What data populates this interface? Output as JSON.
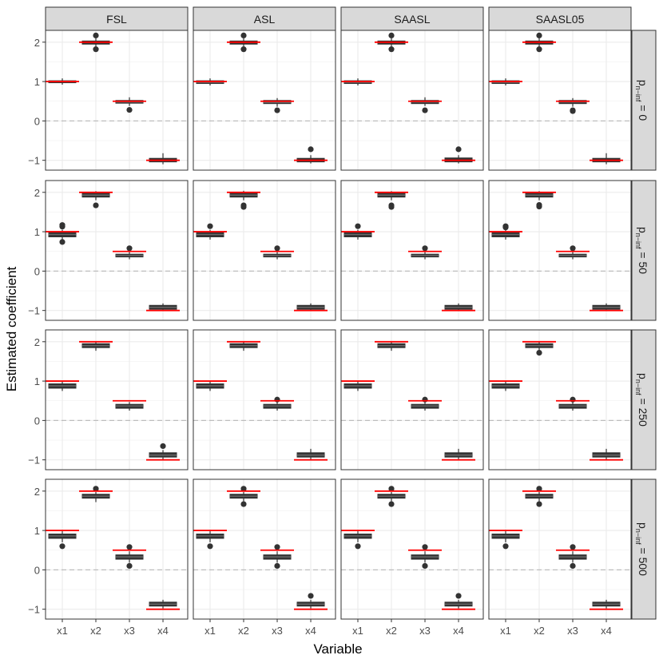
{
  "chart_data": {
    "type": "boxplot-facet-grid",
    "xlabel": "Variable",
    "ylabel": "Estimated coefficient",
    "ylim": [
      -1.25,
      2.3
    ],
    "y_ticks": [
      -1,
      0,
      1,
      2
    ],
    "y_tick_labels": [
      "−1",
      "0",
      "1",
      "2"
    ],
    "categories": [
      "x1",
      "x2",
      "x3",
      "x4"
    ],
    "column_facets": [
      "FSL",
      "ASL",
      "SAASL",
      "SAASL05"
    ],
    "row_facets": [
      {
        "prefix": "p",
        "subscript": "n−inf",
        "suffix": " = 0"
      },
      {
        "prefix": "p",
        "subscript": "n−inf",
        "suffix": " = 50"
      },
      {
        "prefix": "p",
        "subscript": "n−inf",
        "suffix": " = 250"
      },
      {
        "prefix": "p",
        "subscript": "n−inf",
        "suffix": " = 500"
      }
    ],
    "true_values": [
      1,
      2,
      0.5,
      -1
    ],
    "reference_line": 0,
    "colors": {
      "true_value_line": "#ff0000",
      "box_fill": "#333333",
      "outlier": "#333333",
      "reference_line": "#bdbdbd",
      "strip_fill": "#d9d9d9"
    },
    "panels": [
      [
        [
          [
            0.97,
            1.0,
            1.02,
            0.92,
            1.08,
            []
          ],
          [
            1.95,
            2.0,
            2.03,
            1.87,
            2.1,
            [
              2.17,
              1.82
            ]
          ],
          [
            0.45,
            0.48,
            0.52,
            0.38,
            0.6,
            [
              0.28
            ]
          ],
          [
            -1.04,
            -1.0,
            -0.95,
            -1.1,
            -0.82,
            []
          ]
        ],
        [
          [
            0.95,
            0.98,
            1.02,
            0.9,
            1.08,
            []
          ],
          [
            1.95,
            2.0,
            2.03,
            1.87,
            2.1,
            [
              2.17,
              1.82
            ]
          ],
          [
            0.44,
            0.47,
            0.52,
            0.36,
            0.58,
            [
              0.27
            ]
          ],
          [
            -1.04,
            -1.0,
            -0.95,
            -1.08,
            -0.87,
            [
              -0.72
            ]
          ]
        ],
        [
          [
            0.95,
            0.98,
            1.02,
            0.9,
            1.08,
            []
          ],
          [
            1.95,
            2.0,
            2.03,
            1.87,
            2.1,
            [
              2.17,
              1.82
            ]
          ],
          [
            0.44,
            0.48,
            0.52,
            0.38,
            0.6,
            [
              0.27
            ]
          ],
          [
            -1.04,
            -1.0,
            -0.94,
            -1.08,
            -0.87,
            [
              -0.72
            ]
          ]
        ],
        [
          [
            0.95,
            0.98,
            1.02,
            0.9,
            1.08,
            []
          ],
          [
            1.95,
            2.0,
            2.03,
            1.87,
            2.1,
            [
              2.17,
              1.82
            ]
          ],
          [
            0.44,
            0.48,
            0.52,
            0.36,
            0.58,
            [
              0.27,
              0.25
            ]
          ],
          [
            -1.04,
            -1.0,
            -0.95,
            -1.1,
            -0.82,
            []
          ]
        ]
      ],
      [
        [
          [
            0.87,
            0.93,
            0.98,
            0.8,
            1.05,
            [
              1.17,
              1.13,
              0.74
            ]
          ],
          [
            1.88,
            1.93,
            1.98,
            1.8,
            2.03,
            [
              1.67
            ]
          ],
          [
            0.36,
            0.4,
            0.43,
            0.3,
            0.5,
            [
              0.58
            ]
          ],
          [
            -0.97,
            -0.92,
            -0.87,
            -1.0,
            -0.82,
            []
          ]
        ],
        [
          [
            0.87,
            0.93,
            0.98,
            0.8,
            1.05,
            [
              1.14
            ]
          ],
          [
            1.88,
            1.93,
            1.98,
            1.8,
            2.04,
            [
              1.67,
              1.63
            ]
          ],
          [
            0.36,
            0.4,
            0.43,
            0.3,
            0.5,
            [
              0.58
            ]
          ],
          [
            -0.97,
            -0.92,
            -0.87,
            -1.0,
            -0.82,
            []
          ]
        ],
        [
          [
            0.87,
            0.93,
            0.98,
            0.8,
            1.05,
            [
              1.14
            ]
          ],
          [
            1.88,
            1.93,
            1.98,
            1.8,
            2.03,
            [
              1.67,
              1.63
            ]
          ],
          [
            0.36,
            0.4,
            0.43,
            0.3,
            0.5,
            [
              0.58
            ]
          ],
          [
            -0.97,
            -0.92,
            -0.87,
            -1.0,
            -0.82,
            []
          ]
        ],
        [
          [
            0.87,
            0.93,
            0.98,
            0.8,
            1.05,
            [
              1.14,
              1.11
            ]
          ],
          [
            1.88,
            1.93,
            1.98,
            1.8,
            2.03,
            [
              1.68,
              1.64
            ]
          ],
          [
            0.36,
            0.4,
            0.43,
            0.3,
            0.5,
            [
              0.58
            ]
          ],
          [
            -0.97,
            -0.92,
            -0.87,
            -1.0,
            -0.82,
            []
          ]
        ]
      ],
      [
        [
          [
            0.82,
            0.88,
            0.93,
            0.75,
            1.0,
            []
          ],
          [
            1.85,
            1.9,
            1.95,
            1.77,
            2.0,
            []
          ],
          [
            0.31,
            0.37,
            0.41,
            0.25,
            0.47,
            []
          ],
          [
            -0.93,
            -0.88,
            -0.82,
            -1.0,
            -0.75,
            [
              -0.65
            ]
          ]
        ],
        [
          [
            0.82,
            0.88,
            0.93,
            0.75,
            1.0,
            []
          ],
          [
            1.85,
            1.9,
            1.95,
            1.77,
            2.0,
            []
          ],
          [
            0.31,
            0.37,
            0.41,
            0.25,
            0.47,
            [
              0.53
            ]
          ],
          [
            -0.93,
            -0.88,
            -0.82,
            -1.0,
            -0.72,
            []
          ]
        ],
        [
          [
            0.82,
            0.88,
            0.93,
            0.75,
            1.0,
            []
          ],
          [
            1.85,
            1.9,
            1.95,
            1.77,
            2.0,
            []
          ],
          [
            0.31,
            0.37,
            0.41,
            0.25,
            0.47,
            [
              0.53
            ]
          ],
          [
            -0.93,
            -0.88,
            -0.82,
            -1.0,
            -0.72,
            []
          ]
        ],
        [
          [
            0.82,
            0.88,
            0.93,
            0.75,
            1.0,
            []
          ],
          [
            1.85,
            1.9,
            1.95,
            1.77,
            2.0,
            [
              1.72
            ]
          ],
          [
            0.31,
            0.37,
            0.41,
            0.25,
            0.47,
            [
              0.53
            ]
          ],
          [
            -0.93,
            -0.88,
            -0.82,
            -1.0,
            -0.72,
            []
          ]
        ]
      ],
      [
        [
          [
            0.8,
            0.86,
            0.91,
            0.7,
            0.98,
            [
              0.6
            ]
          ],
          [
            1.82,
            1.87,
            1.92,
            1.72,
            1.98,
            [
              2.06
            ]
          ],
          [
            0.27,
            0.33,
            0.38,
            0.18,
            0.47,
            [
              0.58,
              0.1
            ]
          ],
          [
            -0.92,
            -0.87,
            -0.82,
            -0.98,
            -0.76,
            []
          ]
        ],
        [
          [
            0.8,
            0.86,
            0.91,
            0.7,
            0.98,
            [
              0.6
            ]
          ],
          [
            1.82,
            1.87,
            1.92,
            1.74,
            1.98,
            [
              2.06,
              1.67
            ]
          ],
          [
            0.27,
            0.33,
            0.38,
            0.18,
            0.47,
            [
              0.58,
              0.1
            ]
          ],
          [
            -0.92,
            -0.87,
            -0.82,
            -0.98,
            -0.76,
            [
              -0.66
            ]
          ]
        ],
        [
          [
            0.8,
            0.86,
            0.91,
            0.7,
            0.98,
            [
              0.6
            ]
          ],
          [
            1.82,
            1.87,
            1.92,
            1.74,
            1.98,
            [
              2.06,
              1.67
            ]
          ],
          [
            0.27,
            0.33,
            0.38,
            0.18,
            0.47,
            [
              0.58,
              0.1
            ]
          ],
          [
            -0.92,
            -0.87,
            -0.82,
            -0.98,
            -0.76,
            [
              -0.66
            ]
          ]
        ],
        [
          [
            0.8,
            0.86,
            0.91,
            0.7,
            0.98,
            [
              0.6
            ]
          ],
          [
            1.82,
            1.87,
            1.92,
            1.74,
            1.98,
            [
              2.06,
              1.67
            ]
          ],
          [
            0.27,
            0.33,
            0.38,
            0.18,
            0.47,
            [
              0.58,
              0.1
            ]
          ],
          [
            -0.92,
            -0.87,
            -0.82,
            -0.98,
            -0.76,
            []
          ]
        ]
      ]
    ]
  }
}
